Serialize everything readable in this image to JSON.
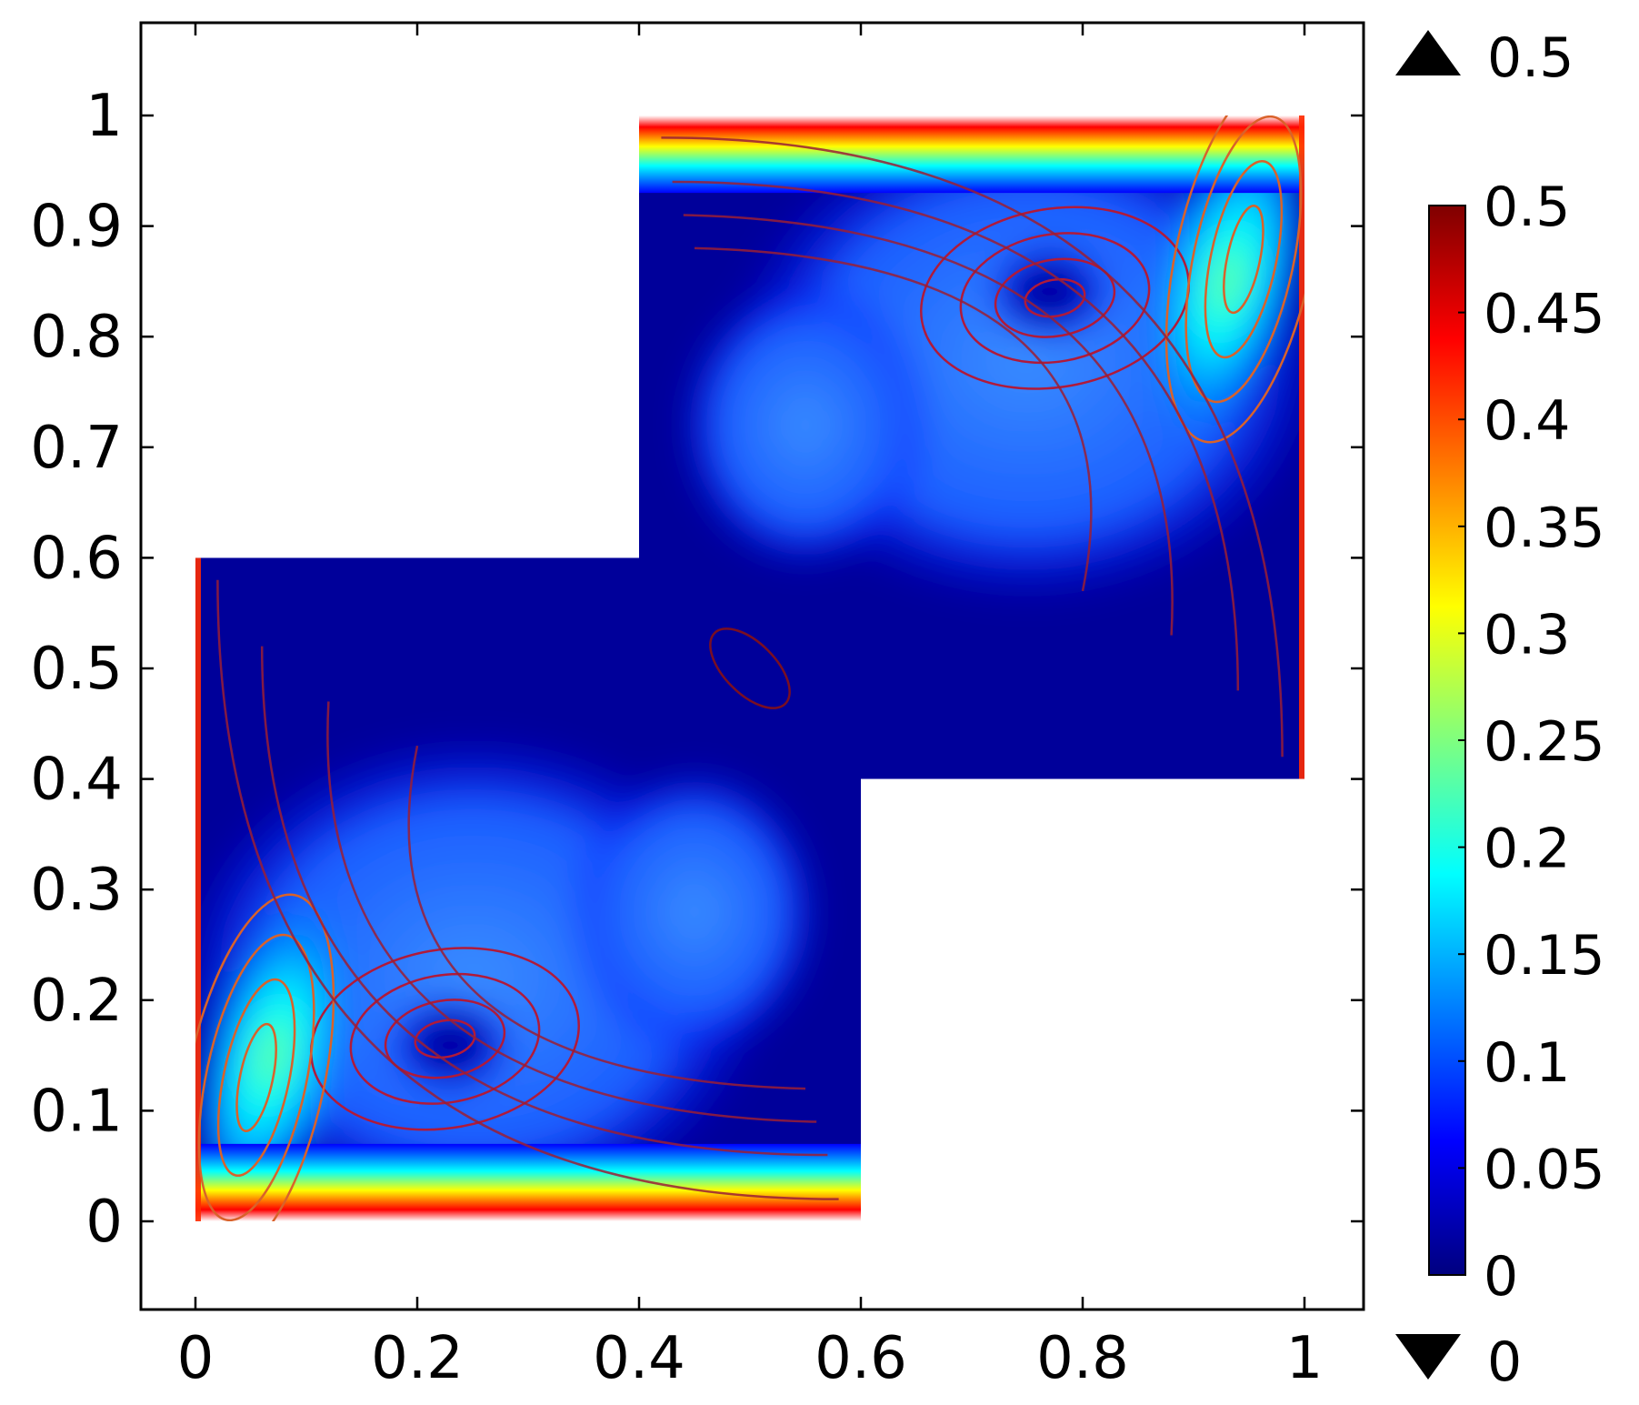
{
  "chart_data": {
    "type": "heatmap",
    "title": "",
    "xlabel": "",
    "ylabel": "",
    "xlim": [
      -0.25,
      1.05
    ],
    "ylim": [
      -0.2,
      1.08
    ],
    "x_ticks": [
      "0",
      "0.2",
      "0.4",
      "0.6",
      "0.8",
      "1"
    ],
    "x_tick_values": [
      0,
      0.2,
      0.4,
      0.6,
      0.8,
      1
    ],
    "y_ticks": [
      "0",
      "0.1",
      "0.2",
      "0.3",
      "0.4",
      "0.5",
      "0.6",
      "0.7",
      "0.8",
      "0.9",
      "1"
    ],
    "y_tick_values": [
      0,
      0.1,
      0.2,
      0.3,
      0.4,
      0.5,
      0.6,
      0.7,
      0.8,
      0.9,
      1
    ],
    "domain_polygon": [
      [
        0,
        0
      ],
      [
        0.6,
        0
      ],
      [
        0.6,
        0.4
      ],
      [
        1,
        0.4
      ],
      [
        1,
        1
      ],
      [
        0.4,
        1
      ],
      [
        0.4,
        0.6
      ],
      [
        0,
        0.6
      ]
    ],
    "colorbar": {
      "min": 0,
      "max": 0.5,
      "ticks": [
        "0",
        "0.05",
        "0.1",
        "0.15",
        "0.2",
        "0.25",
        "0.3",
        "0.35",
        "0.4",
        "0.45",
        "0.5"
      ],
      "tick_values": [
        0,
        0.05,
        0.1,
        0.15,
        0.2,
        0.25,
        0.3,
        0.35,
        0.4,
        0.45,
        0.5
      ],
      "max_label": "0.5",
      "min_label": "0",
      "colormap": [
        "#00007f",
        "#0000ff",
        "#007fff",
        "#00ffff",
        "#7fff7f",
        "#ffff00",
        "#ff7f00",
        "#ff0000",
        "#7f0000"
      ]
    },
    "features": [
      {
        "kind": "high",
        "x": 0.24,
        "y": 0.0,
        "value": 0.5
      },
      {
        "kind": "high",
        "x": 0.76,
        "y": 1.0,
        "value": 0.5
      },
      {
        "kind": "local-max",
        "x": 0.06,
        "y": 0.13,
        "value": 0.27
      },
      {
        "kind": "local-max",
        "x": 0.94,
        "y": 0.87,
        "value": 0.27
      },
      {
        "kind": "vortex-center",
        "x": 0.23,
        "y": 0.16,
        "value": 0.0
      },
      {
        "kind": "vortex-center",
        "x": 0.77,
        "y": 0.84,
        "value": 0.0
      },
      {
        "kind": "saddle",
        "x": 0.5,
        "y": 0.5,
        "value": 0.0
      }
    ],
    "grid": false,
    "legend": "right"
  }
}
